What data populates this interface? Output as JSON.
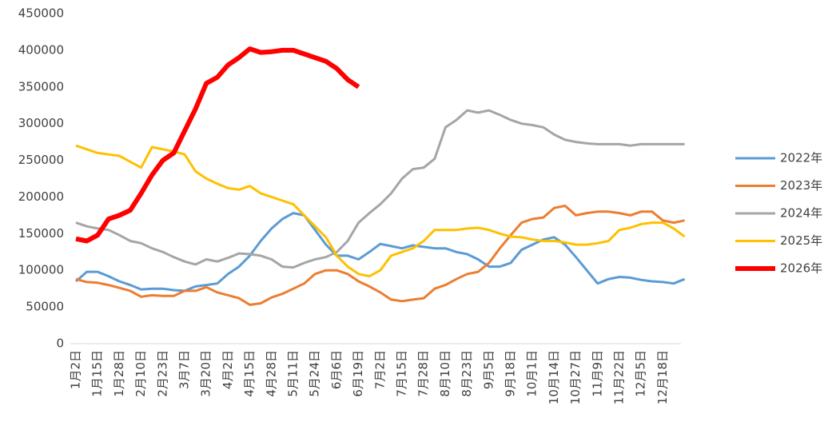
{
  "chart_data": {
    "type": "line",
    "categories": [
      "1月2日",
      null,
      "1月15日",
      null,
      "1月28日",
      null,
      "2月10日",
      null,
      "2月23日",
      null,
      "3月7日",
      null,
      "3月20日",
      null,
      "4月2日",
      null,
      "4月15日",
      null,
      "4月28日",
      null,
      "5月11日",
      null,
      "5月24日",
      null,
      "6月6日",
      null,
      "6月19日",
      null,
      "7月2日",
      null,
      "7月15日",
      null,
      "7月28日",
      null,
      "8月10日",
      null,
      "8月23日",
      null,
      "9月5日",
      null,
      "9月18日",
      null,
      "10月1日",
      null,
      "10月14日",
      null,
      "10月27日",
      null,
      "11月9日",
      null,
      "11月22日",
      null,
      "12月5日",
      null,
      "12月18日",
      null,
      null
    ],
    "ylim": [
      0,
      450000
    ],
    "yticks": [
      0,
      50000,
      100000,
      150000,
      200000,
      250000,
      300000,
      350000,
      400000,
      450000
    ],
    "series": [
      {
        "name": "2022年",
        "color": "#5b9bd5",
        "width": 3,
        "values": [
          85000,
          98000,
          98000,
          92000,
          85000,
          80000,
          74000,
          75000,
          75000,
          73000,
          72000,
          78000,
          80000,
          82000,
          95000,
          105000,
          120000,
          140000,
          157000,
          170000,
          178000,
          175000,
          155000,
          135000,
          120000,
          120000,
          115000,
          125000,
          136000,
          133000,
          130000,
          134000,
          132000,
          130000,
          130000,
          125000,
          122000,
          115000,
          105000,
          105000,
          110000,
          128000,
          135000,
          142000,
          145000,
          135000,
          118000,
          100000,
          82000,
          88000,
          91000,
          90000,
          87000,
          85000,
          84000,
          82000,
          88000
        ]
      },
      {
        "name": "2023年",
        "color": "#ed7d31",
        "width": 3,
        "values": [
          88000,
          84000,
          83000,
          80000,
          76000,
          72000,
          64000,
          66000,
          65000,
          65000,
          72000,
          72000,
          77000,
          70000,
          66000,
          62000,
          53000,
          55000,
          63000,
          68000,
          75000,
          82000,
          95000,
          100000,
          100000,
          95000,
          85000,
          78000,
          70000,
          60000,
          58000,
          60000,
          62000,
          75000,
          80000,
          88000,
          95000,
          98000,
          110000,
          130000,
          148000,
          165000,
          170000,
          172000,
          185000,
          188000,
          175000,
          178000,
          180000,
          180000,
          178000,
          175000,
          180000,
          180000,
          168000,
          165000,
          168000
        ]
      },
      {
        "name": "2024年",
        "color": "#a5a5a5",
        "width": 3,
        "values": [
          165000,
          160000,
          157000,
          155000,
          148000,
          140000,
          137000,
          130000,
          125000,
          118000,
          112000,
          108000,
          115000,
          112000,
          117000,
          123000,
          122000,
          120000,
          115000,
          105000,
          104000,
          110000,
          115000,
          118000,
          125000,
          140000,
          165000,
          178000,
          190000,
          205000,
          225000,
          238000,
          240000,
          252000,
          295000,
          305000,
          318000,
          315000,
          318000,
          312000,
          305000,
          300000,
          298000,
          295000,
          285000,
          278000,
          275000,
          273000,
          272000,
          272000,
          272000,
          270000,
          272000,
          272000,
          272000,
          272000,
          272000
        ]
      },
      {
        "name": "2025年",
        "color": "#ffc000",
        "width": 3,
        "values": [
          270000,
          265000,
          260000,
          258000,
          256000,
          248000,
          240000,
          268000,
          265000,
          262000,
          258000,
          235000,
          225000,
          218000,
          212000,
          210000,
          215000,
          205000,
          200000,
          195000,
          190000,
          175000,
          160000,
          145000,
          120000,
          105000,
          95000,
          92000,
          100000,
          120000,
          125000,
          130000,
          140000,
          155000,
          155000,
          155000,
          157000,
          158000,
          155000,
          150000,
          146000,
          145000,
          142000,
          140000,
          140000,
          138000,
          135000,
          135000,
          137000,
          140000,
          155000,
          158000,
          163000,
          165000,
          165000,
          157000,
          146000
        ]
      },
      {
        "name": "2026年",
        "color": "#ff0000",
        "width": 6,
        "values": [
          143000,
          140000,
          148000,
          170000,
          175000,
          182000,
          205000,
          230000,
          250000,
          260000,
          290000,
          320000,
          355000,
          363000,
          380000,
          390000,
          402000,
          397000,
          398000,
          400000,
          400000,
          395000,
          390000,
          385000,
          375000,
          360000,
          350000,
          null,
          null,
          null,
          null,
          null,
          null,
          null,
          null,
          null,
          null,
          null,
          null,
          null,
          null,
          null,
          null,
          null,
          null,
          null,
          null,
          null,
          null,
          null,
          null,
          null,
          null,
          null,
          null,
          null,
          null
        ]
      }
    ]
  }
}
